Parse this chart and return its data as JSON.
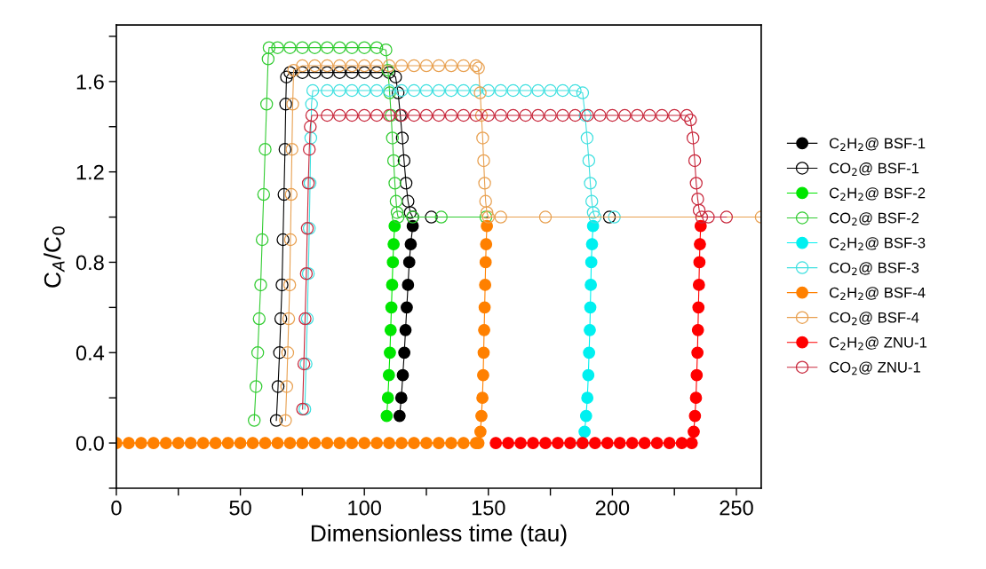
{
  "chart_data": {
    "type": "line",
    "xlabel": "Dimensionless time (tau)",
    "ylabel": "C$_{A}$/C$_{0}$",
    "xlim": [
      0,
      260
    ],
    "ylim": [
      -0.2,
      1.85
    ],
    "xticks": [
      0,
      {
        "value": 25,
        "label": null
      },
      50,
      {
        "value": 75,
        "label": null
      },
      100,
      {
        "value": 125,
        "label": null
      },
      150,
      {
        "value": 175,
        "label": null
      },
      200,
      {
        "value": 225,
        "label": null
      },
      250
    ],
    "yticks": [
      {
        "value": -0.2,
        "label": null
      },
      {
        "value": 0,
        "label": "0.0"
      },
      {
        "value": 0.2,
        "label": null
      },
      0.4,
      {
        "value": 0.6,
        "label": null
      },
      0.8,
      {
        "value": 1.0,
        "label": null
      },
      1.2,
      {
        "value": 1.4,
        "label": null
      },
      1.6,
      {
        "value": 1.8,
        "label": null
      }
    ],
    "line_style": "solid",
    "legend": "right",
    "series": [
      {
        "name": "C$_{2}$H$_{2}$@ BSF-1",
        "color": "#000000",
        "marker": "circle",
        "x": [
          114.2,
          114.9,
          115.5,
          116.1,
          116.6,
          117.1,
          117.6,
          118.1,
          118.7,
          119.5
        ],
        "values": [
          0.12,
          0.2,
          0.3,
          0.4,
          0.5,
          0.6,
          0.7,
          0.8,
          0.88,
          0.96
        ]
      },
      {
        "name": "CO$_{2}$@ BSF-1",
        "color": "#000000",
        "marker": "circle-open",
        "x": [
          64.5,
          65.2,
          65.8,
          66.3,
          66.8,
          67.2,
          67.6,
          68,
          68.3,
          68.6,
          70,
          75,
          80,
          85,
          90,
          95,
          100,
          105,
          110,
          112.6,
          113.6,
          114.5,
          115.3,
          116,
          116.8,
          117.6,
          118.5,
          119.5,
          127,
          198.8
        ],
        "values": [
          0.1,
          0.25,
          0.4,
          0.55,
          0.7,
          0.9,
          1.1,
          1.3,
          1.5,
          1.62,
          1.64,
          1.64,
          1.64,
          1.64,
          1.64,
          1.64,
          1.64,
          1.64,
          1.64,
          1.62,
          1.55,
          1.45,
          1.35,
          1.25,
          1.15,
          1.07,
          1.02,
          1.0,
          1.0,
          1.0
        ]
      },
      {
        "name": "C$_{2}$H$_{2}$@ BSF-2",
        "color": "#00e600",
        "marker": "circle",
        "x": [
          109,
          109.5,
          109.9,
          110.3,
          110.6,
          110.9,
          111.2,
          111.5,
          111.8,
          112.2
        ],
        "values": [
          0.12,
          0.2,
          0.3,
          0.4,
          0.5,
          0.6,
          0.7,
          0.8,
          0.88,
          0.96
        ]
      },
      {
        "name": "CO$_{2}$@ BSF-2",
        "color": "#33cc33",
        "marker": "circle-open",
        "x": [
          55.6,
          56.3,
          57,
          57.6,
          58.2,
          58.8,
          59.4,
          60,
          60.6,
          61.2,
          61.6,
          65,
          70,
          75,
          80,
          85,
          90,
          95,
          100,
          105,
          108.7,
          109.5,
          110.2,
          110.8,
          111.3,
          111.8,
          112.3,
          112.8,
          113.2,
          113.6,
          119.5,
          131,
          149
        ],
        "values": [
          0.1,
          0.25,
          0.4,
          0.55,
          0.7,
          0.9,
          1.1,
          1.3,
          1.5,
          1.7,
          1.75,
          1.75,
          1.75,
          1.75,
          1.75,
          1.75,
          1.75,
          1.75,
          1.75,
          1.75,
          1.74,
          1.65,
          1.55,
          1.45,
          1.35,
          1.25,
          1.15,
          1.07,
          1.02,
          1.0,
          1.0,
          1.0,
          1.0
        ]
      },
      {
        "name": "C$_{2}$H$_{2}$@ BSF-3",
        "color": "#00f0f0",
        "marker": "circle",
        "x": [
          188,
          188.8,
          189.4,
          189.9,
          190.3,
          190.6,
          190.9,
          191.1,
          191.3,
          191.5,
          191.8,
          192.2
        ],
        "values": [
          0,
          0.05,
          0.12,
          0.2,
          0.3,
          0.4,
          0.5,
          0.6,
          0.7,
          0.8,
          0.88,
          0.96
        ]
      },
      {
        "name": "CO$_{2}$@ BSF-3",
        "color": "#40e0e0",
        "marker": "circle-open",
        "x": [
          76,
          76.5,
          77,
          77.4,
          77.8,
          78.1,
          78.4,
          78.7,
          79.2,
          85,
          90,
          95,
          100,
          105,
          110,
          115,
          120,
          125,
          130,
          135,
          140,
          145,
          150,
          155,
          160,
          165,
          170,
          175,
          180,
          185,
          188,
          189,
          189.8,
          190.5,
          191.1,
          191.7,
          192.3,
          193,
          200.8
        ],
        "values": [
          0.15,
          0.35,
          0.55,
          0.75,
          0.95,
          1.15,
          1.35,
          1.5,
          1.56,
          1.56,
          1.56,
          1.56,
          1.56,
          1.56,
          1.56,
          1.56,
          1.56,
          1.56,
          1.56,
          1.56,
          1.56,
          1.56,
          1.56,
          1.56,
          1.56,
          1.56,
          1.56,
          1.56,
          1.56,
          1.56,
          1.55,
          1.45,
          1.35,
          1.25,
          1.15,
          1.07,
          1.02,
          1.0,
          1.0
        ]
      },
      {
        "name": "C$_{2}$H$_{2}$@ BSF-4",
        "color": "#ff8000",
        "marker": "circle",
        "x": [
          0,
          5,
          10,
          15,
          20,
          25,
          30,
          35,
          40,
          45,
          50,
          55,
          60,
          65,
          70,
          75,
          80,
          85,
          90,
          95,
          100,
          105,
          110,
          115,
          120,
          125,
          130,
          135,
          140,
          145,
          146,
          146.8,
          147.2,
          147.6,
          147.9,
          148.1,
          148.3,
          148.5,
          148.7,
          148.9,
          149.1,
          149.4
        ],
        "values": [
          0,
          0,
          0,
          0,
          0,
          0,
          0,
          0,
          0,
          0,
          0,
          0,
          0,
          0,
          0,
          0,
          0,
          0,
          0,
          0,
          0,
          0,
          0,
          0,
          0,
          0,
          0,
          0,
          0,
          0,
          0,
          0.05,
          0.12,
          0.2,
          0.3,
          0.4,
          0.5,
          0.6,
          0.7,
          0.8,
          0.88,
          0.96
        ]
      },
      {
        "name": "CO$_{2}$@ BSF-4",
        "color": "#e8a050",
        "marker": "circle-open",
        "x": [
          68.2,
          68.7,
          69.1,
          69.5,
          69.9,
          70.2,
          70.5,
          70.8,
          71.1,
          71.5,
          75,
          80,
          85,
          90,
          95,
          100,
          105,
          110,
          115,
          120,
          125,
          130,
          135,
          140,
          145,
          146,
          146.7,
          147.2,
          147.7,
          148.1,
          148.5,
          148.9,
          149.4,
          150,
          155,
          173,
          260
        ],
        "values": [
          0.1,
          0.25,
          0.4,
          0.55,
          0.7,
          0.9,
          1.1,
          1.3,
          1.5,
          1.65,
          1.67,
          1.67,
          1.67,
          1.67,
          1.67,
          1.67,
          1.67,
          1.67,
          1.67,
          1.67,
          1.67,
          1.67,
          1.67,
          1.67,
          1.67,
          1.66,
          1.55,
          1.45,
          1.35,
          1.25,
          1.15,
          1.07,
          1.02,
          1.0,
          1.0,
          1.0,
          1.0
        ]
      },
      {
        "name": "C$_{2}$H$_{2}$@ ZNU-1",
        "color": "#ff0000",
        "marker": "circle",
        "x": [
          153,
          158,
          163,
          168,
          173,
          178,
          183,
          188,
          193,
          198,
          203,
          208,
          213,
          218,
          223,
          228,
          232,
          232.8,
          233.3,
          233.7,
          234,
          234.3,
          234.5,
          234.7,
          234.9,
          235.1,
          235.3,
          235.6
        ],
        "values": [
          0,
          0,
          0,
          0,
          0,
          0,
          0,
          0,
          0,
          0,
          0,
          0,
          0,
          0,
          0,
          0,
          0,
          0.05,
          0.12,
          0.2,
          0.3,
          0.4,
          0.5,
          0.6,
          0.7,
          0.8,
          0.88,
          0.96
        ]
      },
      {
        "name": "CO$_{2}$@ ZNU-1",
        "color": "#c8283c",
        "marker": "circle-open",
        "x": [
          75.1,
          75.6,
          76.1,
          76.6,
          77,
          77.4,
          77.8,
          78.2,
          78.8,
          85,
          90,
          95,
          100,
          105,
          110,
          115,
          120,
          125,
          130,
          135,
          140,
          145,
          150,
          155,
          160,
          165,
          170,
          175,
          180,
          185,
          190,
          195,
          200,
          205,
          210,
          215,
          220,
          225,
          230,
          231.5,
          232.5,
          233.2,
          233.8,
          234.4,
          235,
          236,
          238.7,
          246
        ],
        "values": [
          0.15,
          0.35,
          0.55,
          0.75,
          0.95,
          1.15,
          1.3,
          1.4,
          1.45,
          1.45,
          1.45,
          1.45,
          1.45,
          1.45,
          1.45,
          1.45,
          1.45,
          1.45,
          1.45,
          1.45,
          1.45,
          1.45,
          1.45,
          1.45,
          1.45,
          1.45,
          1.45,
          1.45,
          1.45,
          1.45,
          1.45,
          1.45,
          1.45,
          1.45,
          1.45,
          1.45,
          1.45,
          1.45,
          1.45,
          1.43,
          1.35,
          1.25,
          1.15,
          1.08,
          1.03,
          1.0,
          1.0,
          1.0
        ]
      }
    ]
  }
}
